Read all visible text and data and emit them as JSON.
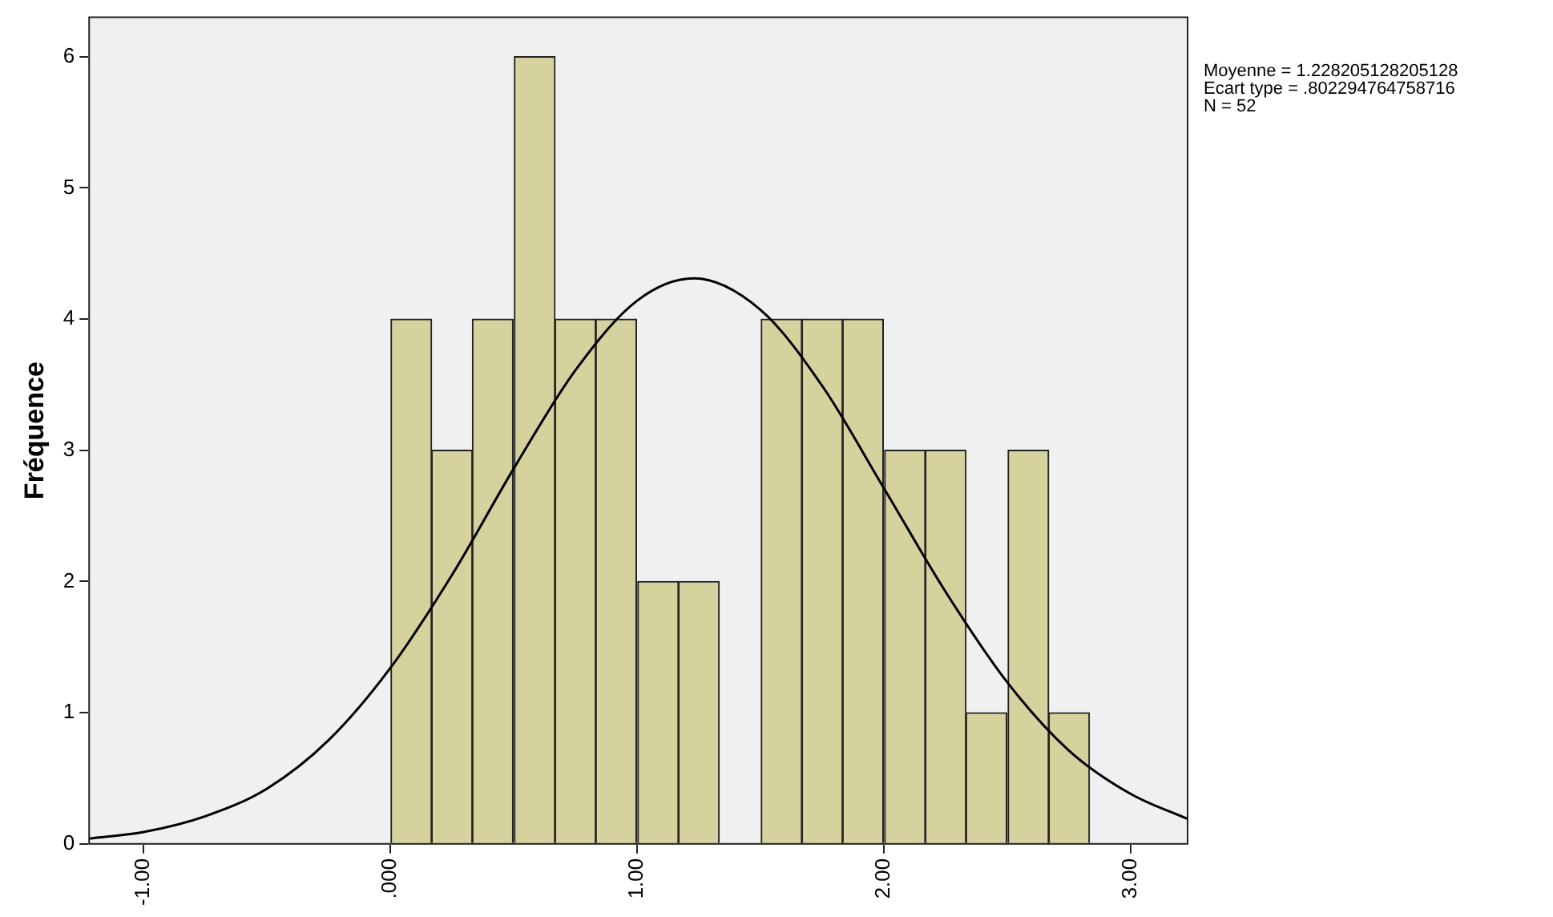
{
  "chart_data": {
    "type": "histogram",
    "ylabel": "Fréquence",
    "annotations": [
      "Moyenne = 1.228205128205128",
      "Ecart type = .802294764758716",
      "N = 52"
    ],
    "series": [
      {
        "type": "histogram",
        "color": "#d6d29e",
        "bins": [
          0,
          0.17,
          0.33,
          0.5,
          0.67,
          0.83,
          1,
          1.17,
          1.33,
          1.5,
          1.67,
          1.83,
          2,
          2.17,
          2.33,
          2.5,
          2.67,
          2.83
        ],
        "values": [
          4,
          3,
          4,
          6,
          4,
          4,
          2,
          2,
          0,
          4,
          4,
          4,
          3,
          3,
          1,
          3,
          1
        ]
      },
      {
        "type": "line",
        "color": "#000000",
        "marker": "none",
        "x": [
          -1.22,
          -1,
          -0.75,
          -0.5,
          -0.25,
          0,
          0.25,
          0.5,
          0.75,
          1,
          1.23,
          1.5,
          1.75,
          2,
          2.25,
          2.5,
          2.75,
          3,
          3.23
        ],
        "values": [
          0.04,
          0.09,
          0.21,
          0.42,
          0.79,
          1.34,
          2.05,
          2.86,
          3.61,
          4.14,
          4.31,
          4.07,
          3.49,
          2.71,
          1.92,
          1.23,
          0.71,
          0.38,
          0.19
        ]
      }
    ],
    "xlim": [
      -1.22,
      3.23
    ],
    "xticks": [
      {
        "value": -1,
        "label": "-1.00"
      },
      {
        "value": 0,
        "label": ".000"
      },
      {
        "value": 1,
        "label": "1.00"
      },
      {
        "value": 2,
        "label": "2.00"
      },
      {
        "value": 3,
        "label": "3.00"
      }
    ],
    "ylim": [
      0,
      6.3
    ],
    "yticks": [
      0,
      1,
      2,
      3,
      4,
      5,
      6
    ],
    "grid": false,
    "legend": false
  }
}
